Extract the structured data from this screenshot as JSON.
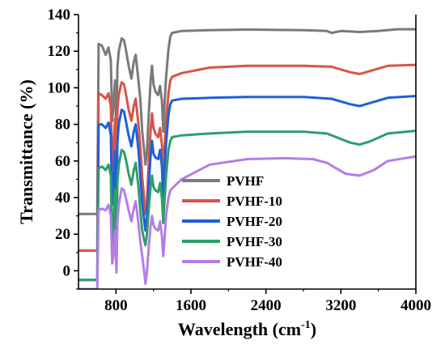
{
  "chart_data": {
    "type": "line",
    "xlabel": "Wavelength (cm",
    "xlabel_sup": "-1",
    "xlabel_close": ")",
    "ylabel": "Transmittance (%)",
    "xlim": [
      400,
      4000
    ],
    "ylim": [
      -10,
      140
    ],
    "xticks": [
      800,
      1600,
      2400,
      3200,
      4000
    ],
    "yticks": [
      0,
      20,
      40,
      60,
      80,
      100,
      120,
      140
    ],
    "legend_position": "lower-center",
    "series": [
      {
        "name": "PVHF",
        "color": "#7a7a7a",
        "points": [
          [
            400,
            31
          ],
          [
            600,
            31
          ],
          [
            615,
            124
          ],
          [
            650,
            123
          ],
          [
            690,
            118
          ],
          [
            720,
            122
          ],
          [
            745,
            115
          ],
          [
            760,
            82
          ],
          [
            772,
            90
          ],
          [
            790,
            104
          ],
          [
            805,
            70
          ],
          [
            815,
            111
          ],
          [
            830,
            120
          ],
          [
            860,
            127
          ],
          [
            885,
            126
          ],
          [
            905,
            121
          ],
          [
            935,
            112
          ],
          [
            965,
            105
          ],
          [
            990,
            114
          ],
          [
            1010,
            118
          ],
          [
            1040,
            104
          ],
          [
            1060,
            94
          ],
          [
            1080,
            76
          ],
          [
            1100,
            66
          ],
          [
            1115,
            58
          ],
          [
            1130,
            65
          ],
          [
            1150,
            86
          ],
          [
            1170,
            104
          ],
          [
            1185,
            112
          ],
          [
            1200,
            102
          ],
          [
            1220,
            98
          ],
          [
            1250,
            96
          ],
          [
            1270,
            101
          ],
          [
            1290,
            93
          ],
          [
            1305,
            76
          ],
          [
            1320,
            93
          ],
          [
            1335,
            106
          ],
          [
            1360,
            121
          ],
          [
            1380,
            128
          ],
          [
            1400,
            130
          ],
          [
            1500,
            131
          ],
          [
            1800,
            131.5
          ],
          [
            2200,
            131.8
          ],
          [
            2800,
            131.5
          ],
          [
            3050,
            131
          ],
          [
            3100,
            130
          ],
          [
            3200,
            131
          ],
          [
            3400,
            130.5
          ],
          [
            3600,
            131
          ],
          [
            3800,
            132
          ],
          [
            4000,
            132
          ]
        ]
      },
      {
        "name": "PVHF-10",
        "color": "#d9534a",
        "points": [
          [
            400,
            11
          ],
          [
            600,
            11
          ],
          [
            615,
            97
          ],
          [
            650,
            96
          ],
          [
            690,
            94
          ],
          [
            720,
            97
          ],
          [
            745,
            90
          ],
          [
            760,
            56
          ],
          [
            772,
            66
          ],
          [
            790,
            83
          ],
          [
            805,
            47
          ],
          [
            815,
            88
          ],
          [
            830,
            96
          ],
          [
            860,
            103
          ],
          [
            885,
            102
          ],
          [
            905,
            97
          ],
          [
            935,
            88
          ],
          [
            965,
            82
          ],
          [
            990,
            90
          ],
          [
            1010,
            94
          ],
          [
            1040,
            80
          ],
          [
            1060,
            68
          ],
          [
            1080,
            51
          ],
          [
            1100,
            40
          ],
          [
            1115,
            31
          ],
          [
            1130,
            38
          ],
          [
            1150,
            60
          ],
          [
            1170,
            77
          ],
          [
            1185,
            86
          ],
          [
            1200,
            78
          ],
          [
            1220,
            75
          ],
          [
            1250,
            73
          ],
          [
            1270,
            78
          ],
          [
            1290,
            69
          ],
          [
            1305,
            52
          ],
          [
            1320,
            69
          ],
          [
            1335,
            82
          ],
          [
            1360,
            97
          ],
          [
            1380,
            104
          ],
          [
            1400,
            106
          ],
          [
            1500,
            108
          ],
          [
            1800,
            111
          ],
          [
            2200,
            112
          ],
          [
            2800,
            112
          ],
          [
            3100,
            111.5
          ],
          [
            3300,
            108.5
          ],
          [
            3400,
            107.5
          ],
          [
            3500,
            109
          ],
          [
            3700,
            112
          ],
          [
            4000,
            112.5
          ]
        ]
      },
      {
        "name": "PVHF-20",
        "color": "#1f5fd9",
        "points": [
          [
            400,
            -5
          ],
          [
            600,
            -5
          ],
          [
            615,
            80
          ],
          [
            650,
            80
          ],
          [
            690,
            78
          ],
          [
            720,
            81
          ],
          [
            745,
            74
          ],
          [
            760,
            36
          ],
          [
            772,
            46
          ],
          [
            790,
            65
          ],
          [
            805,
            28
          ],
          [
            815,
            70
          ],
          [
            830,
            80
          ],
          [
            860,
            88
          ],
          [
            885,
            87
          ],
          [
            905,
            82
          ],
          [
            935,
            74
          ],
          [
            965,
            68
          ],
          [
            990,
            76
          ],
          [
            1010,
            80
          ],
          [
            1040,
            66
          ],
          [
            1060,
            52
          ],
          [
            1080,
            37
          ],
          [
            1100,
            28
          ],
          [
            1115,
            22
          ],
          [
            1130,
            30
          ],
          [
            1150,
            48
          ],
          [
            1170,
            63
          ],
          [
            1185,
            71
          ],
          [
            1200,
            64
          ],
          [
            1220,
            62
          ],
          [
            1250,
            61
          ],
          [
            1270,
            66
          ],
          [
            1290,
            57
          ],
          [
            1305,
            40
          ],
          [
            1320,
            57
          ],
          [
            1335,
            70
          ],
          [
            1360,
            85
          ],
          [
            1380,
            91
          ],
          [
            1400,
            93
          ],
          [
            1500,
            94
          ],
          [
            1800,
            94.5
          ],
          [
            2200,
            95
          ],
          [
            2800,
            95
          ],
          [
            3100,
            94
          ],
          [
            3300,
            91
          ],
          [
            3400,
            90
          ],
          [
            3500,
            91.5
          ],
          [
            3700,
            94.5
          ],
          [
            4000,
            95.5
          ]
        ]
      },
      {
        "name": "PVHF-30",
        "color": "#2e9e6a",
        "points": [
          [
            400,
            -5
          ],
          [
            600,
            -5
          ],
          [
            615,
            56
          ],
          [
            650,
            57
          ],
          [
            690,
            55
          ],
          [
            720,
            58
          ],
          [
            745,
            52
          ],
          [
            760,
            12
          ],
          [
            772,
            24
          ],
          [
            790,
            44
          ],
          [
            805,
            6
          ],
          [
            815,
            48
          ],
          [
            830,
            58
          ],
          [
            860,
            66
          ],
          [
            885,
            65
          ],
          [
            905,
            61
          ],
          [
            935,
            53
          ],
          [
            965,
            47
          ],
          [
            990,
            55
          ],
          [
            1010,
            59
          ],
          [
            1040,
            46
          ],
          [
            1060,
            33
          ],
          [
            1080,
            22
          ],
          [
            1100,
            17
          ],
          [
            1115,
            14
          ],
          [
            1130,
            20
          ],
          [
            1150,
            34
          ],
          [
            1170,
            46
          ],
          [
            1185,
            52
          ],
          [
            1200,
            46
          ],
          [
            1220,
            44
          ],
          [
            1250,
            43
          ],
          [
            1270,
            48
          ],
          [
            1290,
            40
          ],
          [
            1305,
            26
          ],
          [
            1320,
            40
          ],
          [
            1335,
            52
          ],
          [
            1360,
            66
          ],
          [
            1380,
            71
          ],
          [
            1400,
            73
          ],
          [
            1500,
            74
          ],
          [
            1800,
            75
          ],
          [
            2200,
            76
          ],
          [
            2800,
            76
          ],
          [
            3050,
            75
          ],
          [
            3300,
            70
          ],
          [
            3400,
            69
          ],
          [
            3500,
            70.5
          ],
          [
            3700,
            75
          ],
          [
            4000,
            76.5
          ]
        ]
      },
      {
        "name": "PVHF-40",
        "color": "#b27ee6",
        "points": [
          [
            400,
            -10
          ],
          [
            600,
            -10
          ],
          [
            615,
            33
          ],
          [
            650,
            34
          ],
          [
            690,
            33
          ],
          [
            720,
            36
          ],
          [
            745,
            30
          ],
          [
            760,
            4
          ],
          [
            772,
            8
          ],
          [
            790,
            22
          ],
          [
            805,
            -1
          ],
          [
            815,
            26
          ],
          [
            830,
            36
          ],
          [
            860,
            45
          ],
          [
            885,
            44
          ],
          [
            905,
            40
          ],
          [
            935,
            33
          ],
          [
            965,
            27
          ],
          [
            990,
            34
          ],
          [
            1010,
            38
          ],
          [
            1040,
            26
          ],
          [
            1060,
            16
          ],
          [
            1080,
            8
          ],
          [
            1100,
            0
          ],
          [
            1115,
            -7
          ],
          [
            1130,
            -1
          ],
          [
            1150,
            13
          ],
          [
            1170,
            25
          ],
          [
            1185,
            30
          ],
          [
            1200,
            25
          ],
          [
            1220,
            23
          ],
          [
            1250,
            22
          ],
          [
            1270,
            27
          ],
          [
            1290,
            19
          ],
          [
            1305,
            8
          ],
          [
            1320,
            19
          ],
          [
            1335,
            30
          ],
          [
            1360,
            40
          ],
          [
            1380,
            44
          ],
          [
            1400,
            45
          ],
          [
            1500,
            50
          ],
          [
            1800,
            58
          ],
          [
            2200,
            61
          ],
          [
            2600,
            61.5
          ],
          [
            2900,
            61
          ],
          [
            3050,
            59
          ],
          [
            3250,
            53
          ],
          [
            3400,
            52
          ],
          [
            3550,
            55
          ],
          [
            3700,
            60
          ],
          [
            4000,
            62.5
          ]
        ]
      }
    ]
  }
}
